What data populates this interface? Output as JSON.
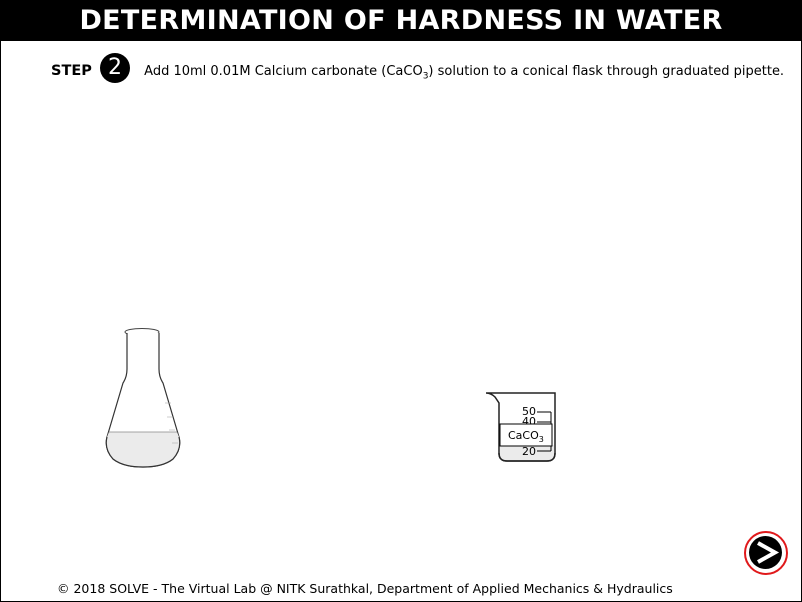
{
  "title": "DETERMINATION OF HARDNESS IN WATER",
  "step": {
    "label": "STEP",
    "number": "2",
    "text_before": "Add 10ml 0.01M Calcium carbonate (CaCO",
    "subscript": "3",
    "text_after": ") solution to a conical flask through graduated pipette."
  },
  "beaker": {
    "label_base": "CaCO",
    "label_sub": "3",
    "tick_50": "50",
    "tick_40": "40",
    "tick_20": "20"
  },
  "footer": "© 2018 SOLVE - The Virtual Lab @ NITK Surathkal, Department of Applied Mechanics & Hydraulics",
  "colors": {
    "title_bg": "#000000",
    "next_ring": "#e0191b"
  },
  "icons": {
    "next": "next-arrow-icon"
  }
}
